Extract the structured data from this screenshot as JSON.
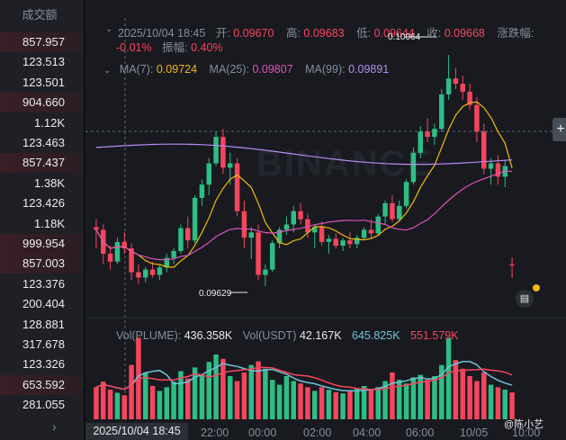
{
  "volume_panel": {
    "header": "成交额",
    "rows": [
      {
        "value": "857.957",
        "red": true
      },
      {
        "value": "123.513",
        "red": false
      },
      {
        "value": "123.501",
        "red": false
      },
      {
        "value": "904.660",
        "red": true
      },
      {
        "value": "1.12K",
        "red": false
      },
      {
        "value": "123.463",
        "red": false
      },
      {
        "value": "857.437",
        "red": true
      },
      {
        "value": "1.38K",
        "red": false
      },
      {
        "value": "123.426",
        "red": false
      },
      {
        "value": "1.18K",
        "red": false
      },
      {
        "value": "999.954",
        "red": true
      },
      {
        "value": "857.003",
        "red": true
      },
      {
        "value": "123.376",
        "red": false
      },
      {
        "value": "200.404",
        "red": false
      },
      {
        "value": "128.881",
        "red": false
      },
      {
        "value": "317.678",
        "red": false
      },
      {
        "value": "123.326",
        "red": false
      },
      {
        "value": "653.592",
        "red": true
      },
      {
        "value": "281.055",
        "red": false
      }
    ]
  },
  "ohlc": {
    "datetime": "2025/10/04 18:45",
    "open_label": "开:",
    "open": "0.09670",
    "high_label": "高:",
    "high": "0.09683",
    "low_label": "低:",
    "low": "0.09644",
    "close_label": "收:",
    "close": "0.09668",
    "change_label": "涨跌幅:",
    "change": "-0.01%",
    "amplitude_label": "振幅:",
    "amplitude": "0.40%"
  },
  "ma": {
    "ma7_label": "MA(7):",
    "ma7": "0.09724",
    "ma25_label": "MA(25):",
    "ma25": "0.09807",
    "ma99_label": "MA(99):",
    "ma99": "0.09891"
  },
  "volume_legend": {
    "plume_label": "Vol(PLUME):",
    "plume": "436.358K",
    "usdt_label": "Vol(USDT)",
    "usdt": "42.167K",
    "ma_a": "645.825K",
    "ma_b": "551.579K"
  },
  "markers": {
    "high": "0.10064",
    "low": "0.09629"
  },
  "watermark": "BINANCE",
  "time_axis": {
    "selected": "2025/10/04 18:45",
    "ticks": [
      "22:00",
      "00:00",
      "02:00",
      "04:00",
      "06:00",
      "10/05",
      "10:00"
    ]
  },
  "author": "@陈小艺",
  "colors": {
    "up": "#2ebd85",
    "down": "#f6465d",
    "ma7": "#f0b90b",
    "ma25": "#e052b8",
    "ma99": "#b98cf0",
    "vol_ma": "#6fc3d8"
  },
  "chart_data": {
    "type": "candlestick",
    "ylim": [
      0.096,
      0.101
    ],
    "candles": [
      [
        0.0974,
        0.09755,
        0.097,
        0.09735
      ],
      [
        0.09735,
        0.09745,
        0.0967,
        0.0969
      ],
      [
        0.0969,
        0.09705,
        0.0966,
        0.09675
      ],
      [
        0.09675,
        0.0972,
        0.0967,
        0.09712
      ],
      [
        0.09712,
        0.0973,
        0.0969,
        0.097
      ],
      [
        0.097,
        0.0971,
        0.0964,
        0.09655
      ],
      [
        0.09655,
        0.0967,
        0.09632,
        0.09645
      ],
      [
        0.09645,
        0.09665,
        0.09636,
        0.0966
      ],
      [
        0.0966,
        0.09675,
        0.09645,
        0.0965
      ],
      [
        0.0965,
        0.09668,
        0.0964,
        0.09664
      ],
      [
        0.09664,
        0.0969,
        0.09655,
        0.09682
      ],
      [
        0.09682,
        0.097,
        0.0967,
        0.09695
      ],
      [
        0.09695,
        0.09745,
        0.0969,
        0.09738
      ],
      [
        0.09738,
        0.0976,
        0.097,
        0.09715
      ],
      [
        0.09715,
        0.098,
        0.0971,
        0.09795
      ],
      [
        0.09795,
        0.0983,
        0.0978,
        0.0982
      ],
      [
        0.0982,
        0.0987,
        0.098,
        0.0986
      ],
      [
        0.0986,
        0.0992,
        0.09855,
        0.0991
      ],
      [
        0.0991,
        0.09925,
        0.0984,
        0.09852
      ],
      [
        0.09852,
        0.0988,
        0.0982,
        0.0986
      ],
      [
        0.0986,
        0.0987,
        0.0976,
        0.0977
      ],
      [
        0.0977,
        0.0979,
        0.097,
        0.0972
      ],
      [
        0.0972,
        0.0974,
        0.0968,
        0.0973
      ],
      [
        0.0973,
        0.09745,
        0.0964,
        0.0965
      ],
      [
        0.0965,
        0.0967,
        0.09629,
        0.0966
      ],
      [
        0.0966,
        0.09715,
        0.09655,
        0.0971
      ],
      [
        0.0971,
        0.0974,
        0.097,
        0.09735
      ],
      [
        0.09735,
        0.0976,
        0.09725,
        0.09745
      ],
      [
        0.09745,
        0.0978,
        0.0973,
        0.0977
      ],
      [
        0.0977,
        0.09785,
        0.09745,
        0.09755
      ],
      [
        0.09755,
        0.09765,
        0.0972,
        0.0973
      ],
      [
        0.0973,
        0.09745,
        0.097,
        0.0974
      ],
      [
        0.0974,
        0.0975,
        0.09705,
        0.09712
      ],
      [
        0.09712,
        0.09725,
        0.0969,
        0.09718
      ],
      [
        0.09718,
        0.09728,
        0.097,
        0.09705
      ],
      [
        0.09705,
        0.0972,
        0.09695,
        0.09715
      ],
      [
        0.09715,
        0.0973,
        0.097,
        0.09708
      ],
      [
        0.09708,
        0.09725,
        0.097,
        0.0972
      ],
      [
        0.0972,
        0.0974,
        0.09715,
        0.09735
      ],
      [
        0.09735,
        0.09755,
        0.0972,
        0.09728
      ],
      [
        0.09728,
        0.09765,
        0.09725,
        0.0976
      ],
      [
        0.0976,
        0.0979,
        0.09745,
        0.09785
      ],
      [
        0.09785,
        0.098,
        0.0975,
        0.09755
      ],
      [
        0.09755,
        0.0979,
        0.0975,
        0.0978
      ],
      [
        0.0978,
        0.0983,
        0.09775,
        0.09825
      ],
      [
        0.09825,
        0.0989,
        0.0982,
        0.0988
      ],
      [
        0.0988,
        0.0993,
        0.0987,
        0.0992
      ],
      [
        0.0992,
        0.09945,
        0.099,
        0.0991
      ],
      [
        0.0991,
        0.09935,
        0.09895,
        0.09925
      ],
      [
        0.09925,
        0.1,
        0.0992,
        0.0999
      ],
      [
        0.0999,
        0.10064,
        0.0998,
        0.1002
      ],
      [
        0.1002,
        0.1004,
        0.1,
        0.1001
      ],
      [
        0.1001,
        0.10025,
        0.0998,
        0.09995
      ],
      [
        0.09995,
        0.1001,
        0.0996,
        0.0997
      ],
      [
        0.0997,
        0.09985,
        0.099,
        0.0992
      ],
      [
        0.0992,
        0.09935,
        0.0984,
        0.0985
      ],
      [
        0.0985,
        0.0987,
        0.0982,
        0.0986
      ],
      [
        0.0986,
        0.09875,
        0.0982,
        0.09835
      ],
      [
        0.09835,
        0.09865,
        0.09815,
        0.09855
      ],
      [
        0.0967,
        0.09683,
        0.09644,
        0.09668
      ]
    ],
    "volume_max": 1400,
    "volumes": [
      520,
      610,
      480,
      430,
      390,
      880,
      1320,
      760,
      540,
      460,
      520,
      610,
      780,
      660,
      840,
      720,
      930,
      1050,
      980,
      700,
      620,
      760,
      880,
      940,
      820,
      640,
      560,
      700,
      620,
      580,
      520,
      460,
      520,
      480,
      440,
      420,
      460,
      500,
      540,
      480,
      520,
      620,
      760,
      640,
      580,
      680,
      720,
      640,
      700,
      880,
      1320,
      960,
      820,
      700,
      620,
      760,
      560,
      520,
      480,
      436
    ]
  }
}
